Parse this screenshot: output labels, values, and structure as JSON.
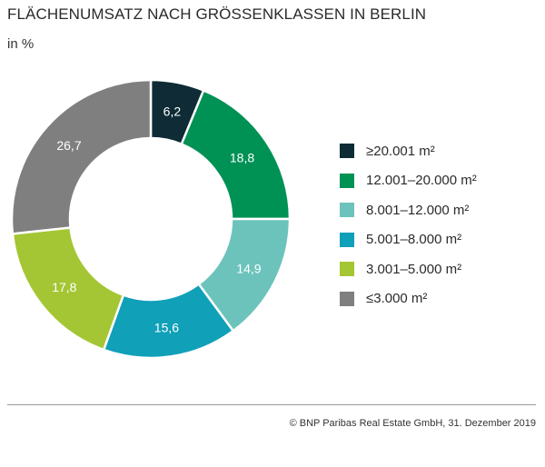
{
  "header": {
    "title": "FLÄCHENUMSATZ NACH GRÖSSENKLASSEN IN BERLIN",
    "subtitle": "in %"
  },
  "footer": {
    "source": "© BNP Paribas Real Estate GmbH, 31. Dezember 2019"
  },
  "chart_data": {
    "type": "pie",
    "variant": "donut",
    "title": "FLÄCHENUMSATZ NACH GRÖSSENKLASSEN IN BERLIN",
    "subtitle": "in %",
    "legend_position": "right",
    "categories": [
      "≥20.001 m²",
      "12.001–20.000 m²",
      "8.001–12.000 m²",
      "5.001–8.000 m²",
      "3.001–5.000 m²",
      "≤3.000 m²"
    ],
    "values": [
      6.2,
      18.8,
      14.9,
      15.6,
      17.8,
      26.7
    ],
    "value_labels": [
      "6,2",
      "18,8",
      "14,9",
      "15,6",
      "17,8",
      "26,7"
    ],
    "colors": [
      "#0e2b36",
      "#009155",
      "#6cc3bc",
      "#10a0b8",
      "#a5c634",
      "#7f7f7f"
    ]
  }
}
